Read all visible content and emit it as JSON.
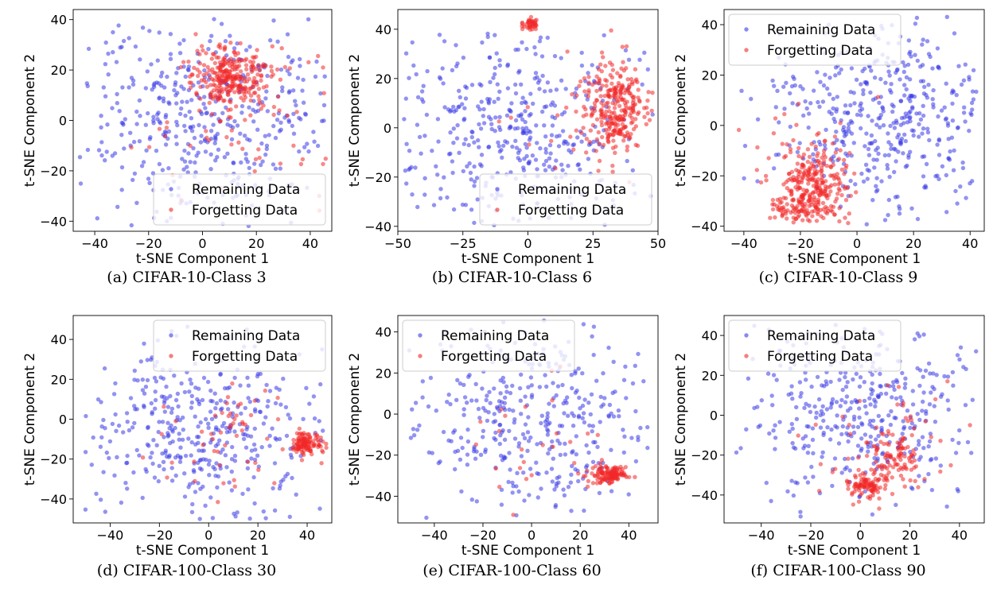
{
  "chart_data": [
    {
      "type": "scatter",
      "caption": "(a) CIFAR-10-Class 3",
      "xlabel": "t-SNE Component 1",
      "ylabel": "t-SNE Component 2",
      "xlim": [
        -48,
        48
      ],
      "ylim": [
        -44,
        44
      ],
      "xticks": [
        -40,
        -20,
        0,
        20,
        40
      ],
      "yticks": [
        -40,
        -20,
        0,
        20,
        40
      ],
      "legend_loc": "lower-right",
      "series": [
        {
          "name": "Remaining Data",
          "color": "#3a3ae8",
          "generator": {
            "seed": 11,
            "count": 420,
            "clusters": [
              {
                "cx": 0,
                "cy": 0,
                "sx": 24,
                "sy": 21,
                "w": 1
              }
            ]
          }
        },
        {
          "name": "Forgetting Data",
          "color": "#f22828",
          "generator": {
            "seed": 12,
            "count": 330,
            "clusters": [
              {
                "cx": 10,
                "cy": 17,
                "sx": 7,
                "sy": 6,
                "w": 0.85
              },
              {
                "cx": 15,
                "cy": 0,
                "sx": 22,
                "sy": 17,
                "w": 0.15
              }
            ]
          }
        }
      ]
    },
    {
      "type": "scatter",
      "caption": "(b) CIFAR-10-Class 6",
      "xlabel": "t-SNE Component 1",
      "ylabel": "t-SNE Component 2",
      "xlim": [
        -50,
        50
      ],
      "ylim": [
        -42,
        48
      ],
      "xticks": [
        -50,
        -25,
        0,
        25,
        50
      ],
      "yticks": [
        -40,
        -20,
        0,
        20,
        40
      ],
      "legend_loc": "lower-right",
      "series": [
        {
          "name": "Remaining Data",
          "color": "#3a3ae8",
          "generator": {
            "seed": 21,
            "count": 400,
            "clusters": [
              {
                "cx": -5,
                "cy": 0,
                "sx": 25,
                "sy": 20,
                "w": 1
              }
            ]
          }
        },
        {
          "name": "Forgetting Data",
          "color": "#f22828",
          "generator": {
            "seed": 22,
            "count": 340,
            "clusters": [
              {
                "cx": 34,
                "cy": 8,
                "sx": 6,
                "sy": 9,
                "w": 0.85
              },
              {
                "cx": 1,
                "cy": 42,
                "sx": 1.5,
                "sy": 1.4,
                "w": 0.07
              },
              {
                "cx": 15,
                "cy": 5,
                "sx": 20,
                "sy": 14,
                "w": 0.08
              }
            ]
          }
        }
      ]
    },
    {
      "type": "scatter",
      "caption": "(c) CIFAR-10-Class 9",
      "xlabel": "t-SNE Component 1",
      "ylabel": "t-SNE Component 2",
      "xlim": [
        -47,
        45
      ],
      "ylim": [
        -42,
        46
      ],
      "xticks": [
        -40,
        -20,
        0,
        20,
        40
      ],
      "yticks": [
        -40,
        -20,
        0,
        20,
        40
      ],
      "legend_loc": "upper-left",
      "series": [
        {
          "name": "Remaining Data",
          "color": "#3a3ae8",
          "generator": {
            "seed": 31,
            "count": 420,
            "clusters": [
              {
                "cx": 10,
                "cy": 5,
                "sx": 22,
                "sy": 20,
                "w": 1
              }
            ]
          }
        },
        {
          "name": "Forgetting Data",
          "color": "#f22828",
          "generator": {
            "seed": 32,
            "count": 340,
            "clusters": [
              {
                "cx": -15,
                "cy": -25,
                "sx": 6,
                "sy": 7,
                "w": 0.8
              },
              {
                "cx": -22,
                "cy": -34,
                "sx": 4,
                "sy": 2,
                "w": 0.1
              },
              {
                "cx": -20,
                "cy": -10,
                "sx": 10,
                "sy": 10,
                "w": 0.1
              }
            ]
          }
        }
      ]
    },
    {
      "type": "scatter",
      "caption": "(d) CIFAR-100-Class 30",
      "xlabel": "t-SNE Component 1",
      "ylabel": "t-SNE Component 2",
      "xlim": [
        -55,
        50
      ],
      "ylim": [
        -52,
        52
      ],
      "xticks": [
        -40,
        -20,
        0,
        20,
        40
      ],
      "yticks": [
        -40,
        -20,
        0,
        20,
        40
      ],
      "legend_loc": "upper-right",
      "series": [
        {
          "name": "Remaining Data",
          "color": "#3a3ae8",
          "generator": {
            "seed": 41,
            "count": 380,
            "clusters": [
              {
                "cx": -3,
                "cy": -5,
                "sx": 24,
                "sy": 22,
                "w": 1
              }
            ]
          }
        },
        {
          "name": "Forgetting Data",
          "color": "#f22828",
          "generator": {
            "seed": 42,
            "count": 170,
            "clusters": [
              {
                "cx": 40,
                "cy": -12,
                "sx": 3.2,
                "sy": 2.6,
                "w": 0.7
              },
              {
                "cx": 10,
                "cy": 0,
                "sx": 4,
                "sy": 4,
                "w": 0.1
              },
              {
                "cx": 10,
                "cy": -15,
                "sx": 18,
                "sy": 15,
                "w": 0.2
              }
            ]
          }
        }
      ]
    },
    {
      "type": "scatter",
      "caption": "(e) CIFAR-100-Class 60",
      "xlabel": "t-SNE Component 1",
      "ylabel": "t-SNE Component 2",
      "xlim": [
        -55,
        52
      ],
      "ylim": [
        -53,
        48
      ],
      "xticks": [
        -40,
        -20,
        0,
        20,
        40
      ],
      "yticks": [
        -40,
        -20,
        0,
        20,
        40
      ],
      "legend_loc": "upper-left",
      "series": [
        {
          "name": "Remaining Data",
          "color": "#3a3ae8",
          "generator": {
            "seed": 51,
            "count": 360,
            "clusters": [
              {
                "cx": 0,
                "cy": -3,
                "sx": 24,
                "sy": 22,
                "w": 1
              }
            ]
          }
        },
        {
          "name": "Forgetting Data",
          "color": "#f22828",
          "generator": {
            "seed": 52,
            "count": 150,
            "clusters": [
              {
                "cx": 32,
                "cy": -29,
                "sx": 3.5,
                "sy": 2.2,
                "w": 0.8
              },
              {
                "cx": 5,
                "cy": -15,
                "sx": 18,
                "sy": 15,
                "w": 0.2
              }
            ]
          }
        }
      ]
    },
    {
      "type": "scatter",
      "caption": "(f) CIFAR-100-Class 90",
      "xlabel": "t-SNE Component 1",
      "ylabel": "t-SNE Component 2",
      "xlim": [
        -55,
        50
      ],
      "ylim": [
        -54,
        50
      ],
      "xticks": [
        -40,
        -20,
        0,
        20,
        40
      ],
      "yticks": [
        -40,
        -20,
        0,
        20,
        40
      ],
      "legend_loc": "upper-left",
      "series": [
        {
          "name": "Remaining Data",
          "color": "#3a3ae8",
          "generator": {
            "seed": 61,
            "count": 380,
            "clusters": [
              {
                "cx": 0,
                "cy": 0,
                "sx": 24,
                "sy": 23,
                "w": 1
              }
            ]
          }
        },
        {
          "name": "Forgetting Data",
          "color": "#f22828",
          "generator": {
            "seed": 62,
            "count": 230,
            "clusters": [
              {
                "cx": 3,
                "cy": -35,
                "sx": 4,
                "sy": 3.5,
                "w": 0.45
              },
              {
                "cx": 14,
                "cy": -23,
                "sx": 5,
                "sy": 5,
                "w": 0.3
              },
              {
                "cx": 10,
                "cy": -15,
                "sx": 15,
                "sy": 13,
                "w": 0.25
              }
            ]
          }
        }
      ]
    }
  ]
}
